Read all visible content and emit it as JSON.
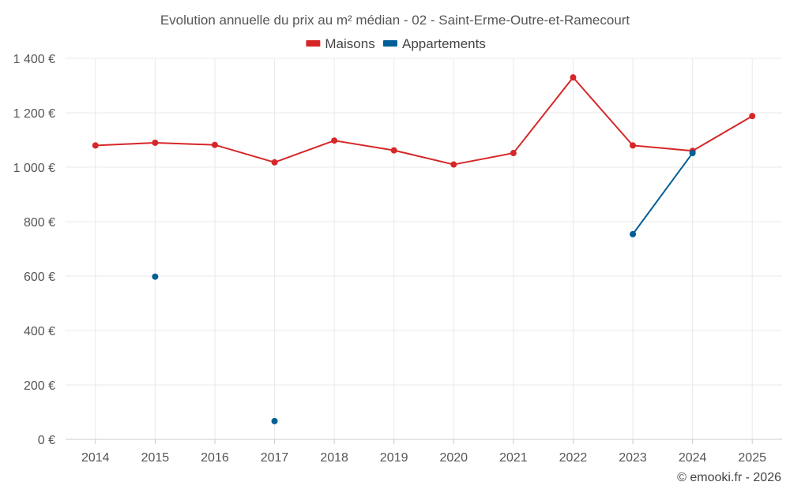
{
  "chart_data": {
    "type": "line",
    "title": "Evolution annuelle du prix au m² médian - 02 - Saint-Erme-Outre-et-Ramecourt",
    "categories": [
      "2014",
      "2015",
      "2016",
      "2017",
      "2018",
      "2019",
      "2020",
      "2021",
      "2022",
      "2023",
      "2024",
      "2025"
    ],
    "ylim": [
      0,
      1400
    ],
    "yticks": [
      0,
      200,
      400,
      600,
      800,
      1000,
      1200,
      1400
    ],
    "ytick_labels": [
      "0 €",
      "200 €",
      "400 €",
      "600 €",
      "800 €",
      "1 000 €",
      "1 200 €",
      "1 400 €"
    ],
    "legend_position": "top-center",
    "grid": true,
    "series": [
      {
        "name": "Maisons",
        "color": "#d62728",
        "values": [
          1080,
          1090,
          1082,
          1018,
          1098,
          1062,
          1010,
          1052,
          1330,
          1080,
          1060,
          1188
        ]
      },
      {
        "name": "Appartements",
        "color": "#005f96",
        "values": [
          null,
          598,
          null,
          67,
          null,
          null,
          null,
          null,
          null,
          754,
          1052,
          null
        ]
      }
    ]
  },
  "credit": "© emooki.fr - 2026"
}
